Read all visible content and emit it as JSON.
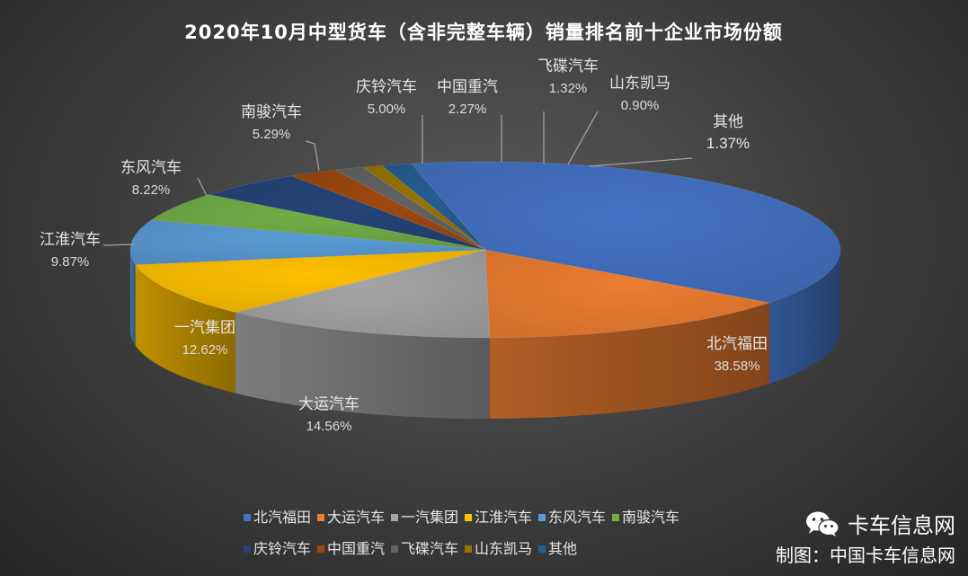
{
  "chart_data": {
    "type": "pie",
    "title": "2020年10月中型货车（含非完整车辆）销量排名前十企业市场份额",
    "categories": [
      "北汽福田",
      "大运汽车",
      "一汽集团",
      "江淮汽车",
      "东风汽车",
      "南骏汽车",
      "庆铃汽车",
      "中国重汽",
      "飞碟汽车",
      "山东凯马",
      "其他"
    ],
    "values": [
      38.58,
      14.56,
      12.62,
      9.87,
      8.22,
      5.29,
      5.0,
      2.27,
      1.32,
      0.9,
      1.37
    ],
    "value_labels": [
      "38.58%",
      "14.56%",
      "12.62%",
      "9.87%",
      "8.22%",
      "5.29%",
      "5.00%",
      "2.27%",
      "1.32%",
      "0.90%",
      "1.37%"
    ],
    "colors": [
      "#4472C4",
      "#ED7D31",
      "#A5A5A5",
      "#FFC000",
      "#5B9BD5",
      "#70AD47",
      "#264478",
      "#9E480E",
      "#636363",
      "#997300",
      "#255E91"
    ],
    "legend_position": "bottom",
    "style": "3d-pie"
  },
  "credit": {
    "brand": "卡车信息网",
    "maker": "制图：中国卡车信息网"
  }
}
